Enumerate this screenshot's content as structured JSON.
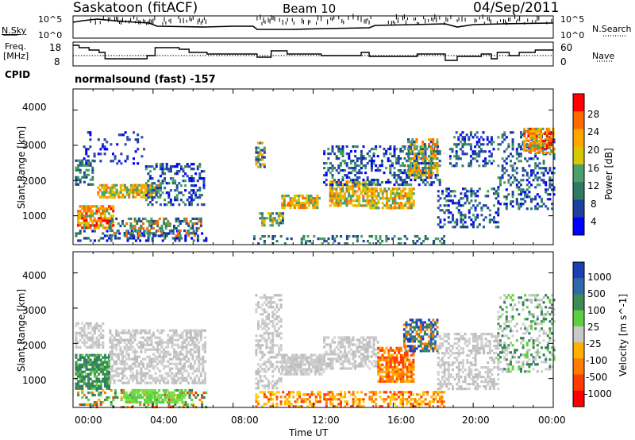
{
  "header": {
    "station": "Saskatoon (fitACF)",
    "beam": "Beam 10",
    "date": "04/Sep/2011"
  },
  "top_panels": {
    "nsky_label": "N.Sky",
    "nsky_ticks": [
      "10^5",
      "10^0"
    ],
    "nsearch_label": "N.Search",
    "nsearch_ticks": [
      "10^5",
      "10^0"
    ],
    "freq_label": "Freq.",
    "freq_unit": "[MHz]",
    "freq_ticks": [
      "18",
      "8"
    ],
    "nave_label": "Nave",
    "nave_ticks": [
      "60",
      "0"
    ],
    "cpid_label": "CPID",
    "cpid_text": "normalsound (fast) -157"
  },
  "chart_data": [
    {
      "type": "heatmap",
      "panel": "power",
      "ylabel": "Slant Range [km]",
      "yticks": [
        "4000",
        "3000",
        "2000",
        "1000"
      ],
      "ylim": [
        180,
        4600
      ],
      "colorbar_label": "Power [dB]",
      "colorbar_ticks": [
        "28",
        "24",
        "20",
        "16",
        "12",
        "8",
        "4"
      ],
      "colorbar_colors": [
        "#ff0000",
        "#ff6a00",
        "#ffa500",
        "#d9c800",
        "#4aa068",
        "#2f7a62",
        "#1d3f9e",
        "#0000ff"
      ],
      "clim": [
        0,
        32
      ]
    },
    {
      "type": "heatmap",
      "panel": "velocity",
      "ylabel": "Slant Range [km]",
      "yticks": [
        "4000",
        "3000",
        "2000",
        "1000"
      ],
      "ylim": [
        180,
        4600
      ],
      "colorbar_label": "Velocity [m s^-1]",
      "colorbar_ticks": [
        "1000",
        "500",
        "100",
        "25",
        "-25",
        "-100",
        "-500",
        "-1000"
      ],
      "colorbar_colors": [
        "#1d3fb5",
        "#2f6aa8",
        "#3d8a52",
        "#5cd042",
        "#c8c8c8",
        "#ffb000",
        "#ff7a00",
        "#ff3c00",
        "#ff0000"
      ]
    }
  ],
  "xaxis": {
    "label": "Time UT",
    "ticks": [
      "00:00",
      "04:00",
      "08:00",
      "12:00",
      "16:00",
      "20:00",
      "00:00"
    ]
  }
}
